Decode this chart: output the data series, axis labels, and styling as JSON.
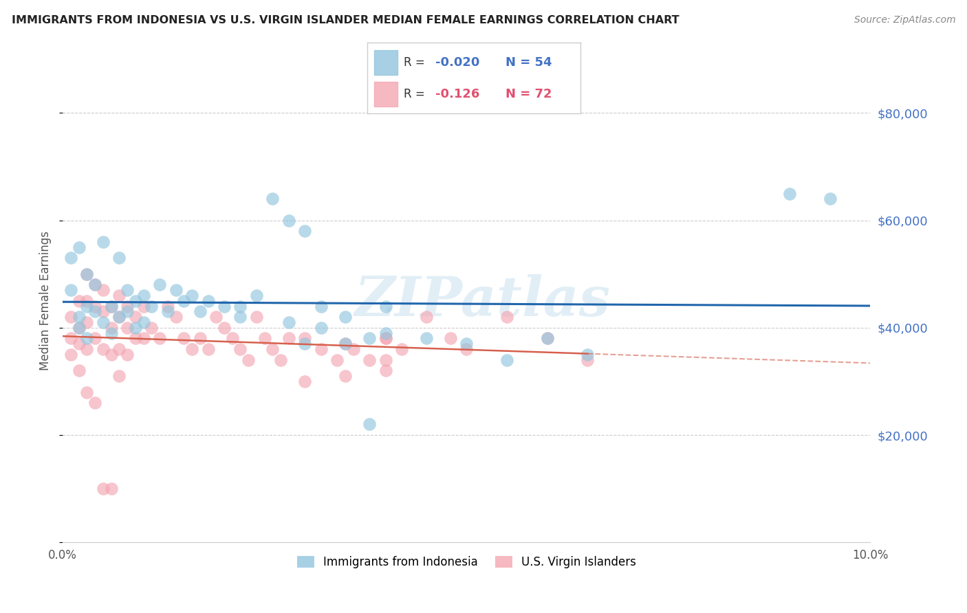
{
  "title": "IMMIGRANTS FROM INDONESIA VS U.S. VIRGIN ISLANDER MEDIAN FEMALE EARNINGS CORRELATION CHART",
  "source": "Source: ZipAtlas.com",
  "ylabel": "Median Female Earnings",
  "xlim": [
    0.0,
    0.1
  ],
  "ylim": [
    0,
    90000
  ],
  "yticks": [
    0,
    20000,
    40000,
    60000,
    80000
  ],
  "ytick_labels": [
    "",
    "$20,000",
    "$40,000",
    "$60,000",
    "$80,000"
  ],
  "xticks": [
    0.0,
    0.02,
    0.04,
    0.06,
    0.08,
    0.1
  ],
  "xtick_labels": [
    "0.0%",
    "",
    "",
    "",
    "",
    "10.0%"
  ],
  "blue_color": "#92c5de",
  "pink_color": "#f4a6b2",
  "blue_line_color": "#2166ac",
  "pink_line_color": "#d6604d",
  "watermark": "ZIPatlas",
  "title_color": "#222222",
  "grid_color": "#cccccc",
  "blue_scatter_x": [
    0.001,
    0.001,
    0.002,
    0.002,
    0.002,
    0.003,
    0.003,
    0.003,
    0.004,
    0.004,
    0.005,
    0.005,
    0.006,
    0.006,
    0.007,
    0.007,
    0.008,
    0.008,
    0.009,
    0.009,
    0.01,
    0.01,
    0.011,
    0.012,
    0.013,
    0.014,
    0.015,
    0.016,
    0.017,
    0.018,
    0.02,
    0.022,
    0.024,
    0.026,
    0.028,
    0.03,
    0.032,
    0.035,
    0.038,
    0.04,
    0.022,
    0.028,
    0.03,
    0.032,
    0.035,
    0.04,
    0.045,
    0.05,
    0.055,
    0.06,
    0.065,
    0.09,
    0.095,
    0.038
  ],
  "blue_scatter_y": [
    47000,
    53000,
    42000,
    55000,
    40000,
    50000,
    44000,
    38000,
    48000,
    43000,
    56000,
    41000,
    44000,
    39000,
    53000,
    42000,
    47000,
    43000,
    45000,
    40000,
    46000,
    41000,
    44000,
    48000,
    43000,
    47000,
    45000,
    46000,
    43000,
    45000,
    44000,
    42000,
    46000,
    64000,
    60000,
    58000,
    44000,
    42000,
    38000,
    44000,
    44000,
    41000,
    37000,
    40000,
    37000,
    39000,
    38000,
    37000,
    34000,
    38000,
    35000,
    65000,
    64000,
    22000
  ],
  "pink_scatter_x": [
    0.001,
    0.001,
    0.001,
    0.002,
    0.002,
    0.002,
    0.002,
    0.003,
    0.003,
    0.003,
    0.003,
    0.004,
    0.004,
    0.004,
    0.005,
    0.005,
    0.005,
    0.006,
    0.006,
    0.006,
    0.007,
    0.007,
    0.007,
    0.008,
    0.008,
    0.008,
    0.009,
    0.009,
    0.01,
    0.01,
    0.011,
    0.012,
    0.013,
    0.014,
    0.015,
    0.016,
    0.017,
    0.018,
    0.019,
    0.02,
    0.021,
    0.022,
    0.023,
    0.024,
    0.025,
    0.026,
    0.027,
    0.028,
    0.03,
    0.032,
    0.034,
    0.036,
    0.038,
    0.04,
    0.042,
    0.045,
    0.048,
    0.05,
    0.055,
    0.06,
    0.065,
    0.03,
    0.035,
    0.04,
    0.003,
    0.004,
    0.005,
    0.006,
    0.007,
    0.035,
    0.04,
    0.04
  ],
  "pink_scatter_y": [
    42000,
    38000,
    35000,
    45000,
    40000,
    37000,
    32000,
    50000,
    45000,
    41000,
    36000,
    48000,
    44000,
    38000,
    47000,
    43000,
    36000,
    44000,
    40000,
    35000,
    46000,
    42000,
    36000,
    44000,
    40000,
    35000,
    42000,
    38000,
    44000,
    38000,
    40000,
    38000,
    44000,
    42000,
    38000,
    36000,
    38000,
    36000,
    42000,
    40000,
    38000,
    36000,
    34000,
    42000,
    38000,
    36000,
    34000,
    38000,
    38000,
    36000,
    34000,
    36000,
    34000,
    38000,
    36000,
    42000,
    38000,
    36000,
    42000,
    38000,
    34000,
    30000,
    31000,
    32000,
    28000,
    26000,
    10000,
    10000,
    31000,
    37000,
    34000,
    38000
  ]
}
